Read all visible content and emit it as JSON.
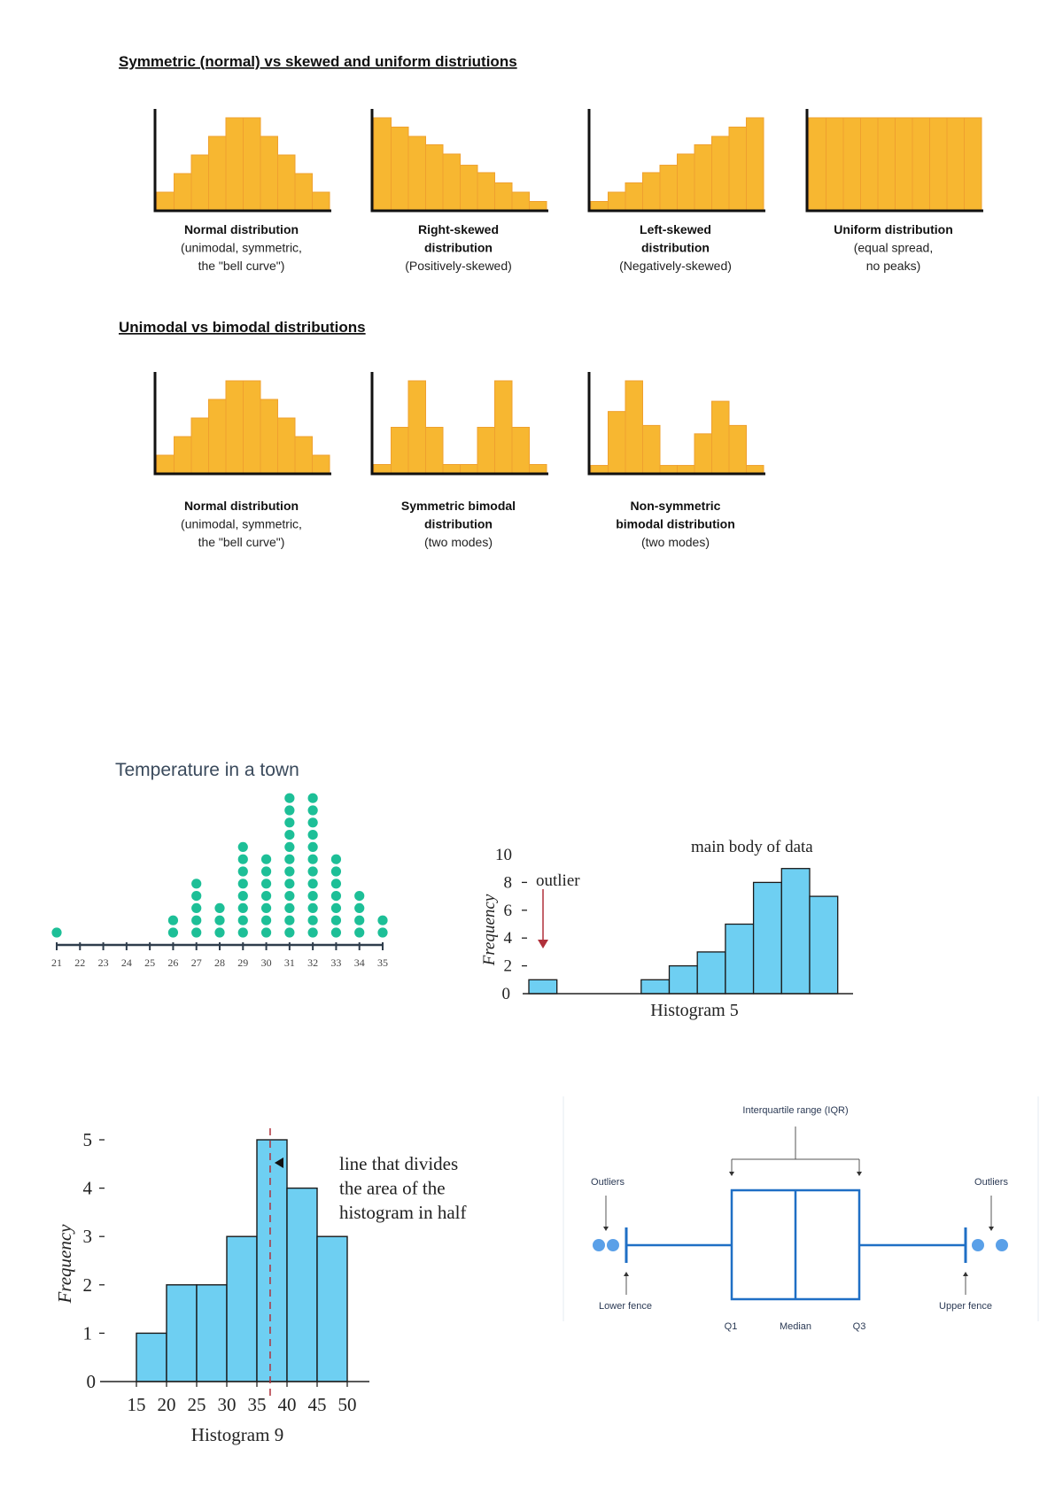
{
  "colors": {
    "orange": "#F7B731",
    "orange_edge": "#EFA02E",
    "blue_bar": "#6ECFF2",
    "teal_dot": "#1DBF97",
    "box_blue": "#1F6FC5",
    "outlier_dot": "#5AA0E8",
    "red_line": "#B0303A"
  },
  "sections": [
    {
      "title": "Symmetric (normal) vs skewed and uniform distriutions",
      "charts": [
        {
          "bold": [
            "Normal distribution"
          ],
          "caption": [
            "(unimodal, symmetric,",
            "the \"bell curve\")"
          ],
          "values": [
            2,
            4,
            6,
            8,
            10,
            10,
            8,
            6,
            4,
            2
          ]
        },
        {
          "bold": [
            "Right-skewed",
            "distribution"
          ],
          "caption": [
            "(Positively-skewed)"
          ],
          "values": [
            10,
            9,
            8,
            7.1,
            6.1,
            4.9,
            4.1,
            3,
            2,
            1
          ]
        },
        {
          "bold": [
            "Left-skewed",
            "distribution"
          ],
          "caption": [
            "(Negatively-skewed)"
          ],
          "values": [
            1,
            2,
            3,
            4.1,
            4.9,
            6.1,
            7.1,
            8,
            9,
            10
          ]
        },
        {
          "bold": [
            "Uniform distribution"
          ],
          "caption": [
            "(equal spread,",
            "no peaks)"
          ],
          "values": [
            10,
            10,
            10,
            10,
            10,
            10,
            10,
            10,
            10,
            10
          ]
        }
      ]
    },
    {
      "title": "Unimodal vs bimodal distributions",
      "charts": [
        {
          "bold": [
            "Normal distribution"
          ],
          "caption": [
            "(unimodal, symmetric,",
            "the \"bell curve\")"
          ],
          "values": [
            2,
            4,
            6,
            8,
            10,
            10,
            8,
            6,
            4,
            2
          ]
        },
        {
          "bold": [
            "Symmetric bimodal",
            "distribution"
          ],
          "caption": [
            "(two modes)"
          ],
          "values": [
            1,
            5,
            10,
            5,
            1,
            1,
            5,
            10,
            5,
            1
          ]
        },
        {
          "bold": [
            "Non-symmetric",
            "bimodal distribution"
          ],
          "caption": [
            "(two modes)"
          ],
          "values": [
            0.9,
            6.7,
            10,
            5.2,
            0.9,
            0.9,
            4.3,
            7.8,
            5.2,
            0.9
          ]
        }
      ]
    }
  ],
  "chart_data": [
    {
      "type": "scatter",
      "subtype": "dot plot",
      "title": "Temperature in a town",
      "x": [
        21,
        22,
        23,
        24,
        25,
        26,
        27,
        28,
        29,
        30,
        31,
        32,
        33,
        34,
        35
      ],
      "counts": [
        1,
        0,
        0,
        0,
        0,
        2,
        5,
        3,
        8,
        7,
        12,
        12,
        7,
        4,
        2
      ],
      "xlim": [
        21,
        35
      ]
    },
    {
      "type": "bar",
      "subtype": "histogram",
      "title": "Histogram 5",
      "ylabel": "Frequency",
      "values": [
        1,
        0,
        0,
        0,
        1,
        2,
        3,
        5,
        8,
        9,
        7
      ],
      "yticks": [
        "0",
        "2",
        "4",
        "6",
        "8",
        "10"
      ],
      "ylim": [
        0,
        10
      ],
      "annotations": [
        "outlier",
        "main body of data"
      ]
    },
    {
      "type": "bar",
      "subtype": "histogram",
      "title": "Histogram 9",
      "ylabel": "Frequency",
      "bin_edges": [
        15,
        20,
        25,
        30,
        35,
        40,
        45,
        50
      ],
      "values": [
        1,
        2,
        2,
        3,
        5,
        4,
        3
      ],
      "xticks": [
        "15",
        "20",
        "25",
        "30",
        "35",
        "40",
        "45",
        "50"
      ],
      "yticks": [
        "0",
        "1",
        "2",
        "3",
        "4",
        "5"
      ],
      "ylim": [
        0,
        5
      ],
      "median_line": 37.2,
      "annotation": [
        "line that divides",
        "the area of the",
        "histogram in half"
      ]
    }
  ],
  "boxplot": {
    "iqr_label": "Interquartile range (IQR)",
    "outliers_left": "Outliers",
    "outliers_right": "Outliers",
    "lower_fence": "Lower fence",
    "upper_fence": "Upper fence",
    "q1": "Q1",
    "median": "Median",
    "q3": "Q3"
  }
}
